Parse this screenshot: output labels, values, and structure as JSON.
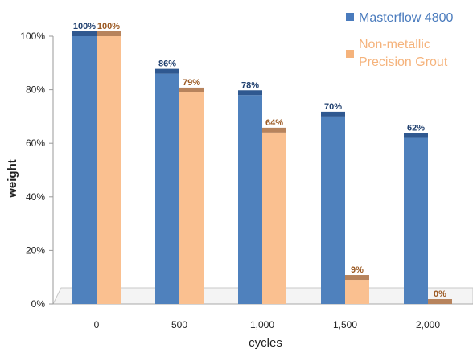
{
  "chart_data": {
    "type": "bar",
    "title": "",
    "xlabel": "cycles",
    "ylabel": "weight",
    "categories": [
      "0",
      "500",
      "1,000",
      "1,500",
      "2,000"
    ],
    "ylim": [
      0,
      1
    ],
    "yticks": [
      0,
      0.2,
      0.4,
      0.6,
      0.8,
      1.0
    ],
    "ytick_labels": [
      "0%",
      "20%",
      "40%",
      "60%",
      "80%",
      "100%"
    ],
    "grid": false,
    "legend_position": "top-right",
    "series": [
      {
        "name": "Masterflow 4800",
        "values": [
          1.0,
          0.86,
          0.78,
          0.7,
          0.62
        ],
        "labels": [
          "100%",
          "86%",
          "78%",
          "70%",
          "62%"
        ],
        "color": "#4f81bd",
        "top_color": "#2f5890",
        "label_color": "#1f3f6e",
        "legend_color": "#4a7bbd"
      },
      {
        "name": "Non-metallic Precision Grout",
        "values": [
          1.0,
          0.79,
          0.64,
          0.09,
          0.0
        ],
        "labels": [
          "100%",
          "79%",
          "64%",
          "9%",
          "0%"
        ],
        "color": "#fac090",
        "top_color": "#b7835c",
        "label_color": "#9c5a23",
        "legend_color": "#f5b37c"
      }
    ]
  }
}
